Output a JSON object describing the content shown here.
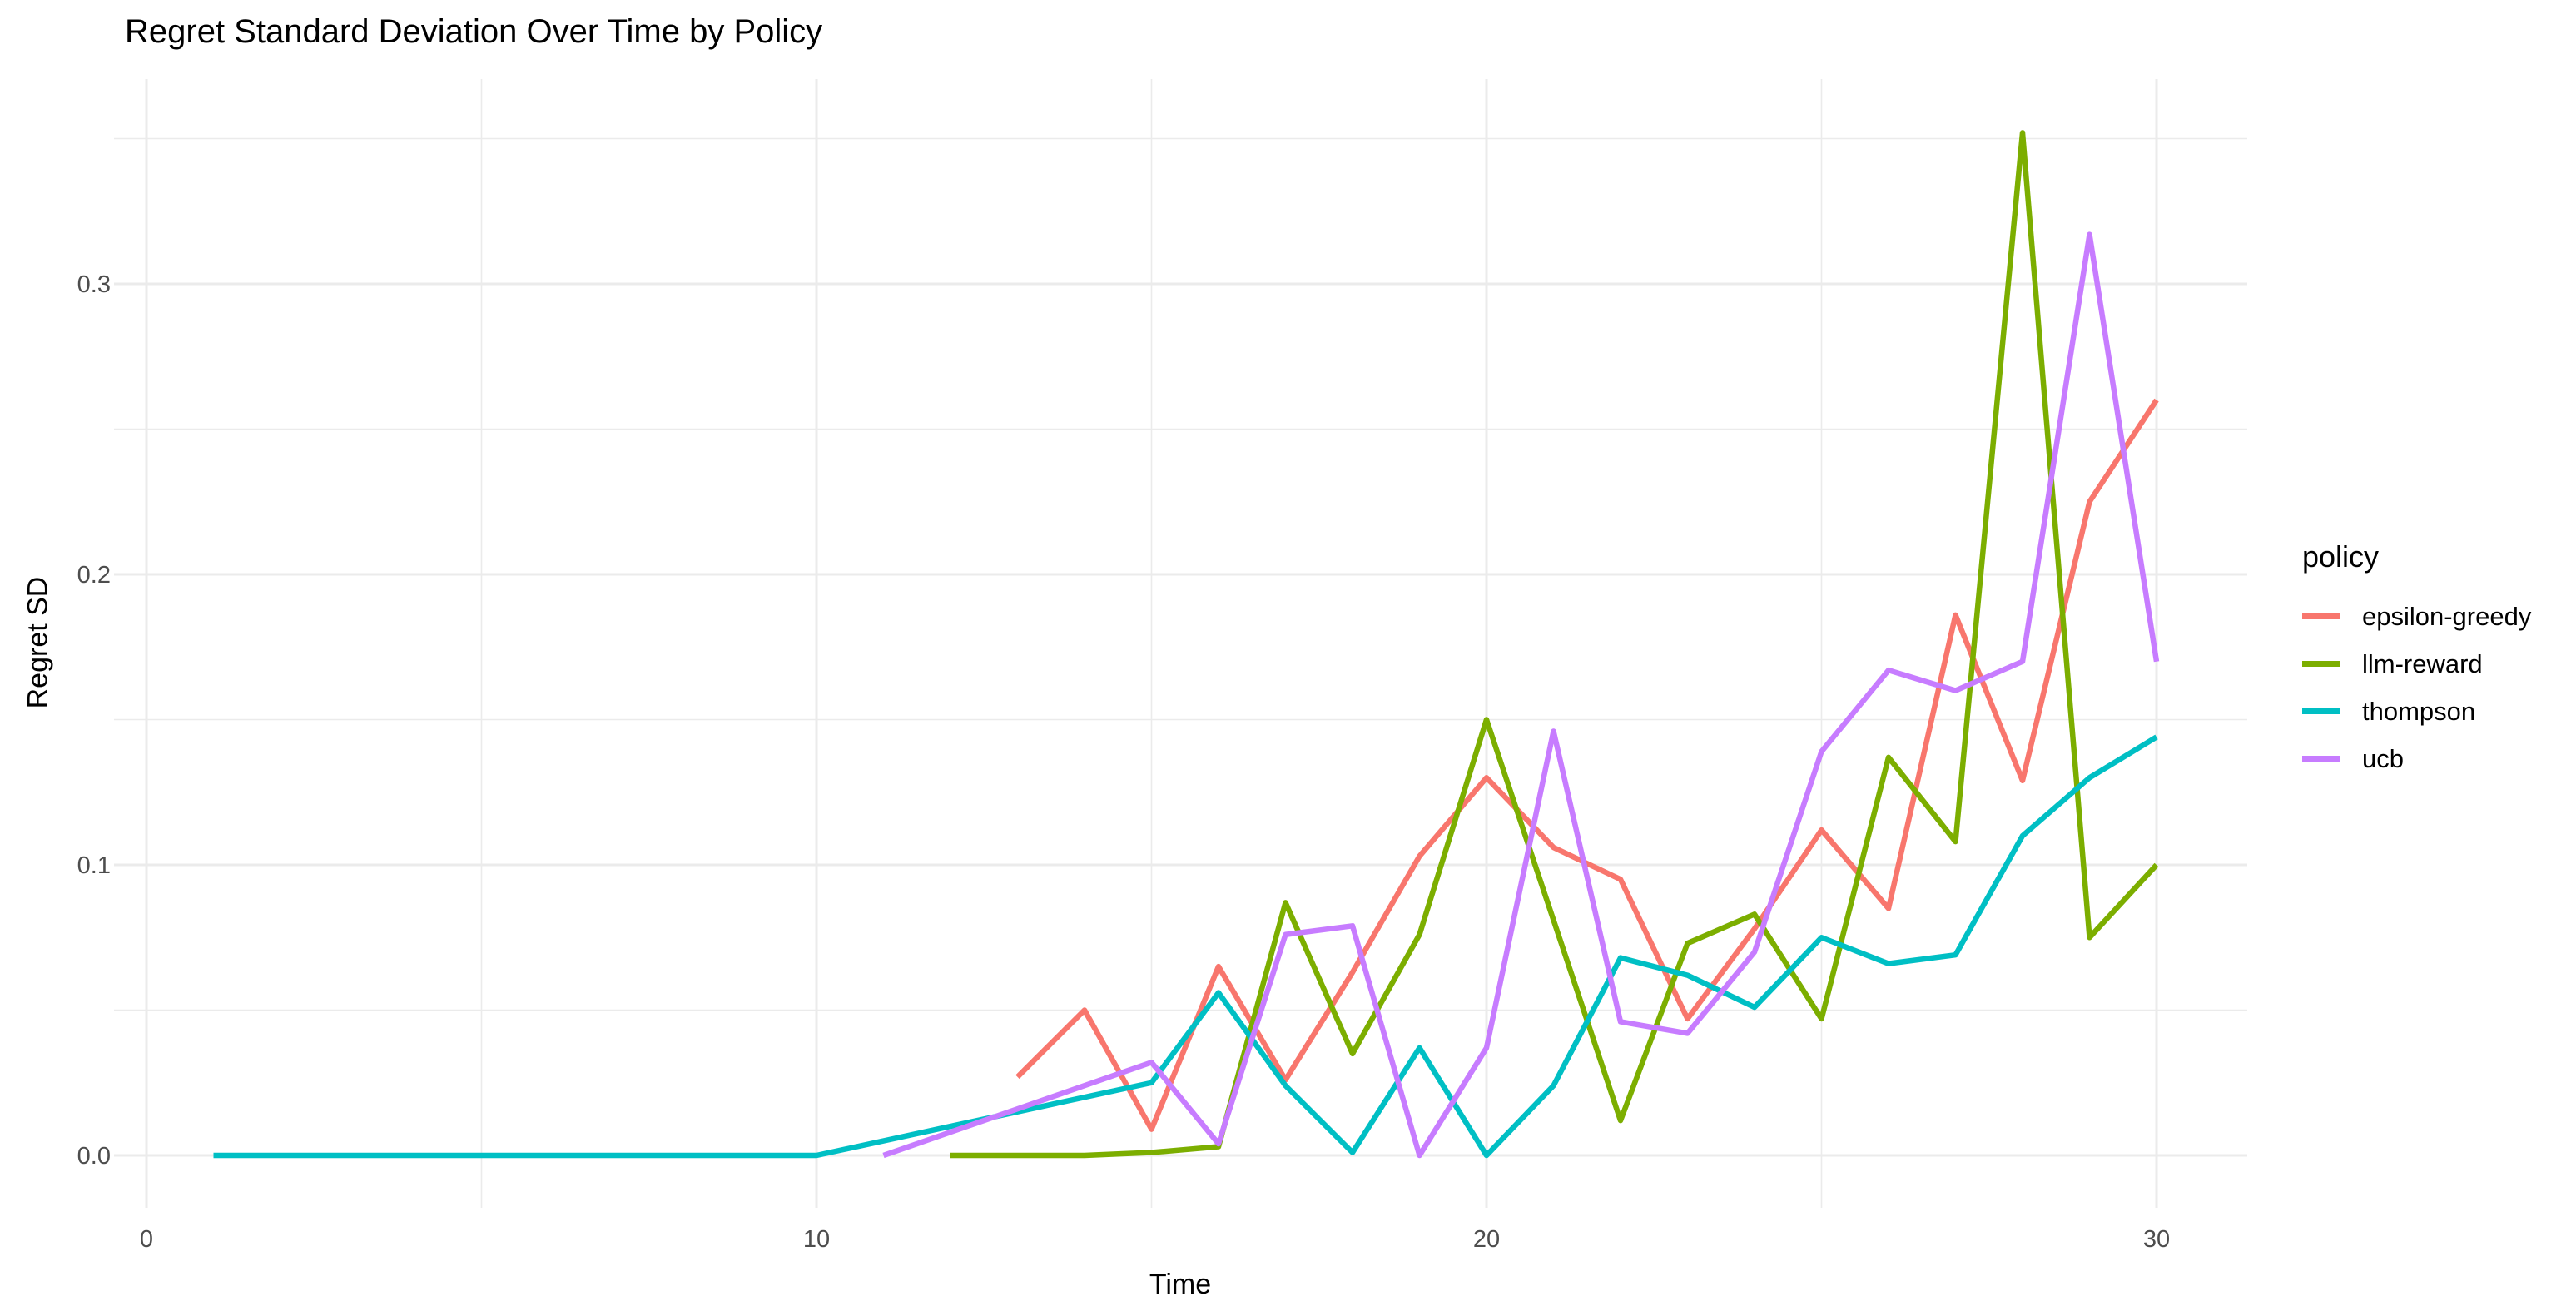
{
  "chart_data": {
    "type": "line",
    "title": "Regret Standard Deviation Over Time by Policy",
    "xlabel": "Time",
    "ylabel": "Regret SD",
    "legend_title": "policy",
    "legend_position": "right",
    "grid": true,
    "xlim": [
      -0.5,
      31.5
    ],
    "ylim": [
      -0.018,
      0.37
    ],
    "x_major_ticks": [
      0,
      10,
      20,
      30
    ],
    "x_minor_ticks": [
      5,
      15,
      25
    ],
    "x_tick_labels": [
      "0",
      "10",
      "20",
      "30"
    ],
    "y_major_ticks": [
      0.0,
      0.1,
      0.2,
      0.3
    ],
    "y_minor_ticks": [
      0.05,
      0.15,
      0.25,
      0.35
    ],
    "y_tick_labels": [
      "0.0",
      "0.1",
      "0.2",
      "0.3"
    ],
    "colors": {
      "background": "#FFFFFF",
      "grid": "#EBEBEB",
      "tick_text": "#4D4D4D",
      "text": "#000000"
    },
    "series": [
      {
        "name": "epsilon-greedy",
        "color": "#F8766D",
        "points": [
          [
            13,
            0.027
          ],
          [
            14,
            0.05
          ],
          [
            15,
            0.009
          ],
          [
            16,
            0.065
          ],
          [
            17,
            0.026
          ],
          [
            18,
            0.063
          ],
          [
            19,
            0.103
          ],
          [
            20,
            0.13
          ],
          [
            21,
            0.106
          ],
          [
            22,
            0.095
          ],
          [
            23,
            0.047
          ],
          [
            24,
            0.078
          ],
          [
            25,
            0.112
          ],
          [
            26,
            0.085
          ],
          [
            27,
            0.186
          ],
          [
            28,
            0.129
          ],
          [
            29,
            0.225
          ],
          [
            30,
            0.26
          ]
        ]
      },
      {
        "name": "llm-reward",
        "color": "#7CAE00",
        "points": [
          [
            12,
            0
          ],
          [
            13,
            0
          ],
          [
            14,
            0
          ],
          [
            15,
            0.001
          ],
          [
            16,
            0.003
          ],
          [
            17,
            0.087
          ],
          [
            18,
            0.035
          ],
          [
            19,
            0.076
          ],
          [
            20,
            0.15
          ],
          [
            21,
            0.081
          ],
          [
            22,
            0.012
          ],
          [
            23,
            0.073
          ],
          [
            24,
            0.083
          ],
          [
            25,
            0.047
          ],
          [
            26,
            0.137
          ],
          [
            27,
            0.108
          ],
          [
            28,
            0.352
          ],
          [
            29,
            0.075
          ],
          [
            30,
            0.1
          ]
        ]
      },
      {
        "name": "thompson",
        "color": "#00BFC4",
        "points": [
          [
            1,
            0
          ],
          [
            2,
            0
          ],
          [
            3,
            0
          ],
          [
            4,
            0
          ],
          [
            5,
            0
          ],
          [
            6,
            0
          ],
          [
            7,
            0
          ],
          [
            8,
            0
          ],
          [
            9,
            0
          ],
          [
            10,
            0
          ],
          [
            11,
            0.005
          ],
          [
            12,
            0.01
          ],
          [
            13,
            0.015
          ],
          [
            14,
            0.02
          ],
          [
            15,
            0.025
          ],
          [
            16,
            0.056
          ],
          [
            17,
            0.024
          ],
          [
            18,
            0.001
          ],
          [
            19,
            0.037
          ],
          [
            20,
            0
          ],
          [
            21,
            0.024
          ],
          [
            22,
            0.068
          ],
          [
            23,
            0.062
          ],
          [
            24,
            0.051
          ],
          [
            25,
            0.075
          ],
          [
            26,
            0.066
          ],
          [
            27,
            0.069
          ],
          [
            28,
            0.11
          ],
          [
            29,
            0.13
          ],
          [
            30,
            0.144
          ]
        ]
      },
      {
        "name": "ucb",
        "color": "#C77CFF",
        "points": [
          [
            11,
            0
          ],
          [
            12,
            0.008
          ],
          [
            13,
            0.016
          ],
          [
            14,
            0.024
          ],
          [
            15,
            0.032
          ],
          [
            16,
            0.004
          ],
          [
            17,
            0.076
          ],
          [
            18,
            0.079
          ],
          [
            19,
            0
          ],
          [
            20,
            0.037
          ],
          [
            21,
            0.146
          ],
          [
            22,
            0.046
          ],
          [
            23,
            0.042
          ],
          [
            24,
            0.07
          ],
          [
            25,
            0.139
          ],
          [
            26,
            0.167
          ],
          [
            27,
            0.16
          ],
          [
            28,
            0.17
          ],
          [
            29,
            0.317
          ],
          [
            30,
            0.17
          ]
        ]
      }
    ]
  }
}
